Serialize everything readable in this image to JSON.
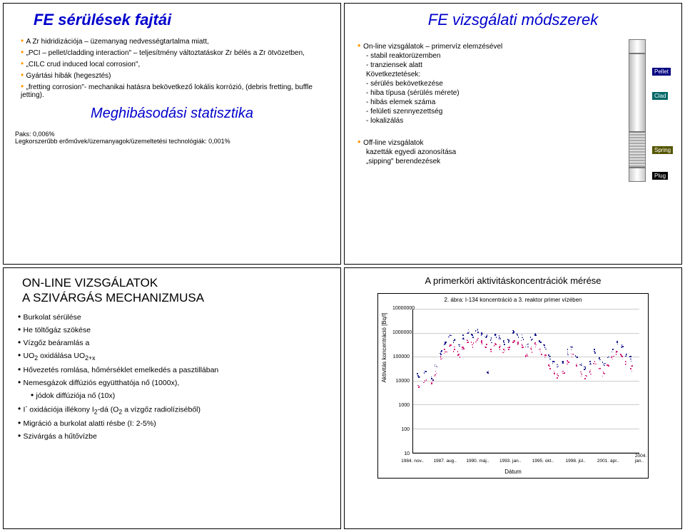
{
  "slide1": {
    "title": "FE sérülések fajtái",
    "bullets": [
      "A Zr hidridizációja – üzemanyag nedvességtartalma miatt,",
      "„PCI – pellet/cladding interaction\" – teljesítmény változtatáskor Zr bélés a Zr ötvözetben,",
      "„CILC crud induced local corrosion\",",
      "Gyártási hibák (hegesztés)",
      "„fretting corrosion\"- mechanikai hatásra bekövetkező lokális korrózió, (debris fretting, buffle jetting)."
    ],
    "midTitle": "Meghibásodási statisztika",
    "foot1": "Paks: 0,006%",
    "foot2": "Legkorszerűbb erőművek/üzemanyagok/üzemeltetési technológiák: 0,001%"
  },
  "slide2": {
    "title": "FE vizsgálati módszerek",
    "group1top": "On-line vizsgálatok – primervíz elemzésével",
    "g1": [
      "- stabil reaktorüzemben",
      "- tranziensek alatt",
      "Következtetések:",
      "- sérülés bekövetkezése",
      "- hiba típusa (sérülés mérete)",
      "- hibás elemek száma",
      "- felületi szennyezettség",
      "- lokalizálás"
    ],
    "group2top": "Off-line vizsgálatok",
    "g2": [
      "kazetták egyedi azonosítása",
      "„sipping\" berendezések"
    ],
    "rod": {
      "labels": {
        "pellet": "Pellet",
        "clad": "Clad",
        "spring": "Spring",
        "plug": "Plug"
      },
      "colors": {
        "pellet": "#000080",
        "clad": "#006666",
        "spring": "#555500",
        "plug": "#000000"
      }
    }
  },
  "slide3": {
    "titleLine1": "ON-LINE VIZSGÁLATOK",
    "titleLine2": "A SZIVÁRGÁS MECHANIZMUSA",
    "bullets": [
      {
        "t": "Burkolat sérülése"
      },
      {
        "t": "He töltőgáz szökése"
      },
      {
        "t": "Vízgőz beáramlás a"
      },
      {
        "t": "UO<sub>2</sub> oxidálása UO<sub>2+x</sub>"
      },
      {
        "t": "Hővezetés romlása, hőmérséklet emelkedés a pasztillában"
      },
      {
        "t": "Nemesgázok diffúziós együtthatója nő (1000x),"
      },
      {
        "t": "jódok diffúziója nő (10x)",
        "sub": true
      },
      {
        "t": "I<sup>-</sup> oxidációja illékony I<sub>2</sub>-dá (O<sub>2</sub> a vízgőz radiolíziséből)"
      },
      {
        "t": "Migráció a burkolat alatti résbe (I: 2-5%)"
      },
      {
        "t": "Szivárgás a hűtővízbe"
      }
    ]
  },
  "slide4": {
    "title": "A primerköri aktivitáskoncentrációk mérése",
    "chart": {
      "title": "2. ábra: I-134 koncentráció a 3. reaktor primer vízében",
      "ylabel": "Aktivitás koncentráció [Bq/l]",
      "xlabel": "Dátum",
      "yticks": [
        "10",
        "100",
        "1000",
        "10000",
        "100000",
        "1000000",
        "10000000"
      ],
      "ylog_min": 1,
      "ylog_max": 7,
      "xticks": [
        "1984. nov..",
        "1987. aug..",
        "1990. máj..",
        "1993. jan..",
        "1995. okt..",
        "1998. júl..",
        "2001. ápr..",
        "2004. jan.."
      ],
      "series": [
        {
          "color": "#000080",
          "pts": [
            [
              0.02,
              4.2
            ],
            [
              0.05,
              4.4
            ],
            [
              0.08,
              4.1
            ],
            [
              0.1,
              4.6
            ],
            [
              0.12,
              5.2
            ],
            [
              0.14,
              5.6
            ],
            [
              0.16,
              5.9
            ],
            [
              0.18,
              5.7
            ],
            [
              0.2,
              5.5
            ],
            [
              0.22,
              5.8
            ],
            [
              0.24,
              6.0
            ],
            [
              0.26,
              5.9
            ],
            [
              0.28,
              6.1
            ],
            [
              0.3,
              6.0
            ],
            [
              0.32,
              5.8
            ],
            [
              0.33,
              4.4
            ],
            [
              0.34,
              5.7
            ],
            [
              0.36,
              5.9
            ],
            [
              0.38,
              5.8
            ],
            [
              0.4,
              5.6
            ],
            [
              0.42,
              5.7
            ],
            [
              0.44,
              6.0
            ],
            [
              0.46,
              5.9
            ],
            [
              0.48,
              5.8
            ],
            [
              0.5,
              5.5
            ],
            [
              0.52,
              5.7
            ],
            [
              0.54,
              5.9
            ],
            [
              0.56,
              5.6
            ],
            [
              0.58,
              5.4
            ],
            [
              0.6,
              5.0
            ],
            [
              0.62,
              4.8
            ],
            [
              0.64,
              4.6
            ],
            [
              0.66,
              4.8
            ],
            [
              0.68,
              5.2
            ],
            [
              0.7,
              5.4
            ],
            [
              0.72,
              5.0
            ],
            [
              0.74,
              4.7
            ],
            [
              0.76,
              4.5
            ],
            [
              0.78,
              4.8
            ],
            [
              0.8,
              5.2
            ],
            [
              0.82,
              4.9
            ],
            [
              0.84,
              4.7
            ],
            [
              0.86,
              5.0
            ],
            [
              0.88,
              5.3
            ],
            [
              0.9,
              5.6
            ],
            [
              0.92,
              5.4
            ],
            [
              0.94,
              5.1
            ],
            [
              0.96,
              4.9
            ]
          ]
        },
        {
          "color": "#cc0066",
          "pts": [
            [
              0.02,
              3.8
            ],
            [
              0.05,
              4.0
            ],
            [
              0.08,
              3.9
            ],
            [
              0.1,
              4.3
            ],
            [
              0.12,
              4.9
            ],
            [
              0.14,
              5.2
            ],
            [
              0.16,
              5.5
            ],
            [
              0.18,
              5.3
            ],
            [
              0.2,
              5.1
            ],
            [
              0.22,
              5.4
            ],
            [
              0.24,
              5.6
            ],
            [
              0.26,
              5.5
            ],
            [
              0.28,
              5.7
            ],
            [
              0.3,
              5.6
            ],
            [
              0.32,
              5.4
            ],
            [
              0.34,
              5.3
            ],
            [
              0.36,
              5.5
            ],
            [
              0.38,
              5.4
            ],
            [
              0.4,
              5.2
            ],
            [
              0.42,
              5.3
            ],
            [
              0.44,
              5.6
            ],
            [
              0.46,
              5.5
            ],
            [
              0.48,
              5.4
            ],
            [
              0.5,
              5.1
            ],
            [
              0.52,
              5.3
            ],
            [
              0.54,
              5.5
            ],
            [
              0.56,
              5.2
            ],
            [
              0.58,
              5.0
            ],
            [
              0.6,
              4.6
            ],
            [
              0.62,
              4.4
            ],
            [
              0.64,
              4.2
            ],
            [
              0.66,
              4.4
            ],
            [
              0.68,
              4.8
            ],
            [
              0.7,
              5.0
            ],
            [
              0.72,
              4.6
            ],
            [
              0.74,
              4.3
            ],
            [
              0.76,
              4.1
            ],
            [
              0.78,
              4.4
            ],
            [
              0.8,
              4.8
            ],
            [
              0.82,
              4.5
            ],
            [
              0.84,
              4.3
            ],
            [
              0.86,
              4.6
            ],
            [
              0.88,
              4.9
            ],
            [
              0.9,
              5.2
            ],
            [
              0.92,
              5.0
            ],
            [
              0.94,
              4.7
            ],
            [
              0.96,
              4.5
            ]
          ]
        }
      ]
    }
  }
}
